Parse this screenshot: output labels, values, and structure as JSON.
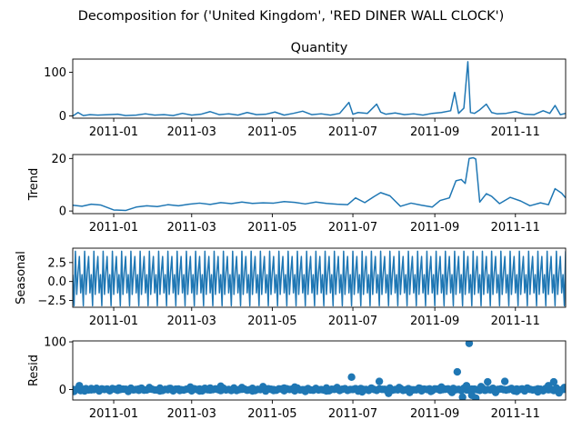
{
  "figure": {
    "suptitle": "Decomposition for ('United Kingdom', 'RED DINER WALL CLOCK')"
  },
  "colors": {
    "series": "#1f77b4",
    "axes": "#000000",
    "zero_line": "#000000"
  },
  "x_axis": {
    "type": "date",
    "range": [
      "2010-12-01",
      "2011-12-09"
    ],
    "ticks": [
      {
        "date": "2011-01-01",
        "label": "2011-01"
      },
      {
        "date": "2011-03-01",
        "label": "2011-03"
      },
      {
        "date": "2011-05-01",
        "label": "2011-05"
      },
      {
        "date": "2011-07-01",
        "label": "2011-07"
      },
      {
        "date": "2011-09-01",
        "label": "2011-09"
      },
      {
        "date": "2011-11-01",
        "label": "2011-11"
      }
    ]
  },
  "chart_data": [
    {
      "type": "line",
      "title": "Quantity",
      "ylabel": "",
      "ylim": [
        -5,
        130
      ],
      "yticks": [
        0,
        100
      ],
      "grid": false,
      "series": [
        {
          "x": [
            "2010-12-01",
            "2010-12-05",
            "2010-12-09",
            "2010-12-14",
            "2010-12-20",
            "2011-01-04",
            "2011-01-10",
            "2011-01-18",
            "2011-01-25",
            "2011-02-01",
            "2011-02-08",
            "2011-02-15",
            "2011-02-22",
            "2011-03-01",
            "2011-03-08",
            "2011-03-15",
            "2011-03-22",
            "2011-03-29",
            "2011-04-05",
            "2011-04-12",
            "2011-04-19",
            "2011-04-26",
            "2011-05-03",
            "2011-05-10",
            "2011-05-17",
            "2011-05-24",
            "2011-05-31",
            "2011-06-07",
            "2011-06-14",
            "2011-06-21",
            "2011-06-28",
            "2011-07-01",
            "2011-07-05",
            "2011-07-12",
            "2011-07-19",
            "2011-07-22",
            "2011-07-26",
            "2011-08-02",
            "2011-08-09",
            "2011-08-16",
            "2011-08-23",
            "2011-08-30",
            "2011-09-06",
            "2011-09-13",
            "2011-09-16",
            "2011-09-19",
            "2011-09-23",
            "2011-09-26",
            "2011-09-28",
            "2011-10-01",
            "2011-10-05",
            "2011-10-10",
            "2011-10-14",
            "2011-10-18",
            "2011-10-25",
            "2011-11-01",
            "2011-11-08",
            "2011-11-15",
            "2011-11-22",
            "2011-11-27",
            "2011-12-01",
            "2011-12-05",
            "2011-12-09"
          ],
          "values": [
            0,
            8,
            1,
            3,
            2,
            4,
            1,
            2,
            5,
            2,
            3,
            1,
            6,
            2,
            4,
            10,
            3,
            5,
            2,
            8,
            3,
            4,
            9,
            2,
            6,
            11,
            3,
            5,
            2,
            6,
            31,
            4,
            8,
            6,
            27,
            9,
            4,
            7,
            3,
            5,
            2,
            6,
            8,
            12,
            54,
            6,
            18,
            124,
            8,
            6,
            14,
            27,
            8,
            5,
            6,
            10,
            4,
            3,
            12,
            6,
            24,
            3,
            6
          ]
        }
      ]
    },
    {
      "type": "line",
      "title": "",
      "ylabel": "Trend",
      "ylim": [
        -1,
        21.5
      ],
      "yticks": [
        0,
        20
      ],
      "grid": false,
      "series": [
        {
          "x": [
            "2010-12-01",
            "2010-12-08",
            "2010-12-15",
            "2010-12-22",
            "2011-01-01",
            "2011-01-10",
            "2011-01-18",
            "2011-01-26",
            "2011-02-03",
            "2011-02-11",
            "2011-02-19",
            "2011-02-27",
            "2011-03-07",
            "2011-03-15",
            "2011-03-23",
            "2011-03-31",
            "2011-04-08",
            "2011-04-16",
            "2011-04-24",
            "2011-05-02",
            "2011-05-10",
            "2011-05-18",
            "2011-05-26",
            "2011-06-03",
            "2011-06-11",
            "2011-06-19",
            "2011-06-27",
            "2011-07-03",
            "2011-07-10",
            "2011-07-17",
            "2011-07-22",
            "2011-07-29",
            "2011-08-06",
            "2011-08-14",
            "2011-08-22",
            "2011-08-30",
            "2011-09-05",
            "2011-09-12",
            "2011-09-17",
            "2011-09-21",
            "2011-09-24",
            "2011-09-27",
            "2011-09-30",
            "2011-10-02",
            "2011-10-05",
            "2011-10-10",
            "2011-10-14",
            "2011-10-20",
            "2011-10-28",
            "2011-11-05",
            "2011-11-12",
            "2011-11-20",
            "2011-11-26",
            "2011-12-01",
            "2011-12-06",
            "2011-12-09"
          ],
          "values": [
            2.2,
            1.8,
            2.6,
            2.3,
            0.4,
            0.2,
            1.5,
            2.0,
            1.7,
            2.4,
            2.0,
            2.6,
            3.0,
            2.5,
            3.2,
            2.8,
            3.4,
            2.9,
            3.1,
            3.0,
            3.6,
            3.3,
            2.7,
            3.4,
            2.9,
            2.6,
            2.4,
            5.0,
            3.2,
            5.5,
            7.0,
            5.8,
            1.8,
            3.0,
            2.2,
            1.5,
            4.0,
            5.0,
            11.5,
            12.0,
            10.5,
            20.0,
            20.3,
            19.8,
            3.4,
            6.6,
            5.6,
            2.8,
            5.2,
            3.8,
            2.0,
            3.1,
            2.4,
            8.5,
            6.8,
            5.0
          ]
        }
      ]
    },
    {
      "type": "line",
      "title": "",
      "ylabel": "Seasonal",
      "ylim": [
        -3.4,
        4.4
      ],
      "yticks": [
        -2.5,
        0.0,
        2.5
      ],
      "ytick_labels": [
        "−2.5",
        "0.0",
        "2.5"
      ],
      "grid": false,
      "period_days": 7,
      "pattern": [
        0.9,
        -3.2,
        4.0,
        -1.7,
        1.2,
        3.3,
        -1.5
      ],
      "x_start": "2010-12-01",
      "x_end": "2011-12-09"
    },
    {
      "type": "scatter",
      "title": "",
      "ylabel": "Resid",
      "ylim": [
        -22,
        102
      ],
      "yticks": [
        0,
        100
      ],
      "grid": false,
      "zero_line": true,
      "series": [
        {
          "x": [
            "2010-12-02",
            "2010-12-06",
            "2010-12-10",
            "2010-12-15",
            "2010-12-21",
            "2011-01-05",
            "2011-01-12",
            "2011-01-20",
            "2011-01-28",
            "2011-02-05",
            "2011-02-12",
            "2011-02-20",
            "2011-02-28",
            "2011-03-07",
            "2011-03-15",
            "2011-03-23",
            "2011-03-31",
            "2011-04-08",
            "2011-04-16",
            "2011-04-24",
            "2011-05-02",
            "2011-05-10",
            "2011-05-18",
            "2011-05-26",
            "2011-06-03",
            "2011-06-11",
            "2011-06-19",
            "2011-06-30",
            "2011-07-08",
            "2011-07-15",
            "2011-07-21",
            "2011-07-28",
            "2011-08-05",
            "2011-08-13",
            "2011-08-21",
            "2011-08-29",
            "2011-09-06",
            "2011-09-14",
            "2011-09-18",
            "2011-09-22",
            "2011-09-25",
            "2011-09-27",
            "2011-09-29",
            "2011-10-02",
            "2011-10-06",
            "2011-10-11",
            "2011-10-17",
            "2011-10-24",
            "2011-11-02",
            "2011-11-10",
            "2011-11-18",
            "2011-11-26",
            "2011-11-30",
            "2011-12-04",
            "2011-12-08"
          ],
          "values": [
            -4,
            8,
            -3,
            2,
            -2,
            3,
            -4,
            1,
            4,
            -3,
            2,
            -2,
            5,
            -3,
            3,
            7,
            -2,
            4,
            -3,
            6,
            -2,
            3,
            5,
            -4,
            2,
            -3,
            4,
            26,
            -5,
            3,
            17,
            -8,
            4,
            -6,
            2,
            -4,
            5,
            -6,
            37,
            -16,
            8,
            97,
            -12,
            -18,
            6,
            16,
            -6,
            17,
            -4,
            3,
            -5,
            8,
            16,
            -7,
            4
          ]
        }
      ]
    }
  ]
}
